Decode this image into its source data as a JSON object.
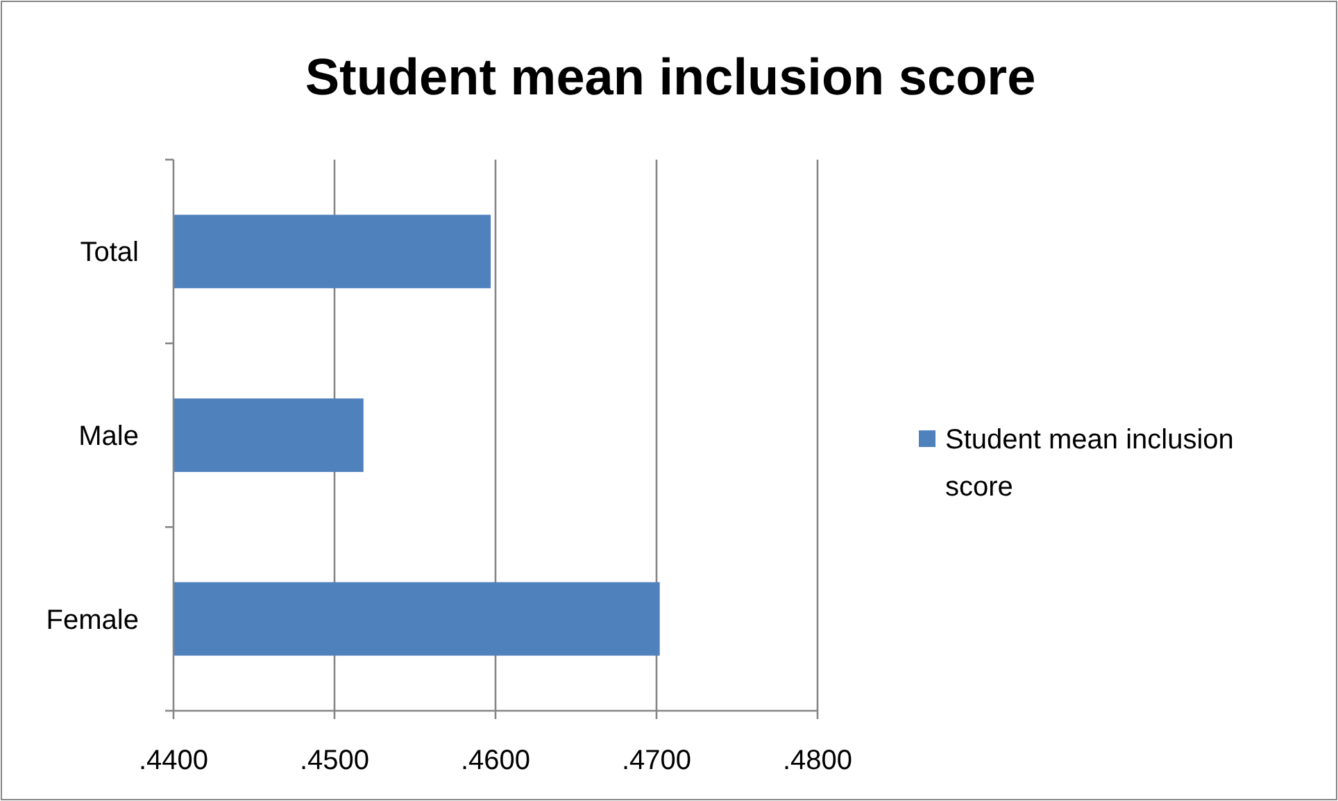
{
  "chart_data": {
    "type": "bar",
    "orientation": "horizontal",
    "title": "Student mean inclusion score",
    "categories": [
      "Total",
      "Male",
      "Female"
    ],
    "series": [
      {
        "name": "Student mean inclusion score",
        "color": "#4f81bd",
        "values": [
          0.4597,
          0.4518,
          0.4702
        ]
      }
    ],
    "xlim": [
      0.44,
      0.48
    ],
    "xticks": [
      {
        "value": 0.44,
        "label": ".4400"
      },
      {
        "value": 0.45,
        "label": ".4500"
      },
      {
        "value": 0.46,
        "label": ".4600"
      },
      {
        "value": 0.47,
        "label": ".4700"
      },
      {
        "value": 0.48,
        "label": ".4800"
      }
    ],
    "grid": "x",
    "legend": "right"
  }
}
